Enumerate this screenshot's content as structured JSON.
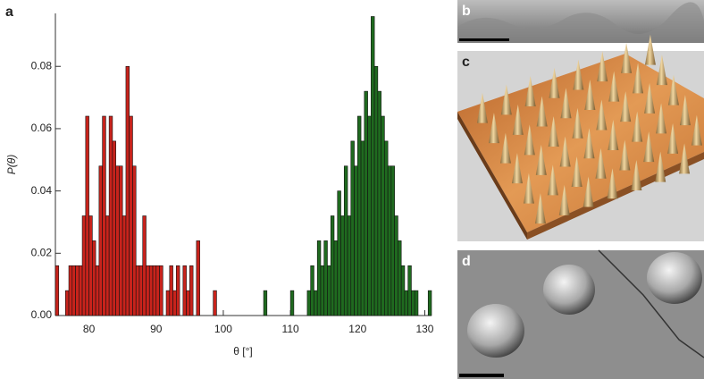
{
  "chart_data": {
    "type": "histogram",
    "panel_label": "a",
    "y_label": "P(θ)",
    "x_label": "θ [°]",
    "xlim": [
      75,
      131
    ],
    "xticks": [
      80,
      90,
      100,
      110,
      120,
      130
    ],
    "ylim": [
      0,
      0.097
    ],
    "yticks": [
      {
        "value": 0,
        "label": "0.00"
      },
      0.02,
      0.04,
      0.06,
      0.08
    ],
    "series": [
      {
        "color": "#c8231c",
        "bins": [
          75,
          75.5,
          76,
          76.5,
          77,
          77.5,
          78,
          78.5,
          79,
          79.5,
          80,
          80.5,
          81,
          81.5,
          82,
          82.5,
          83,
          83.5,
          84,
          84.5,
          85,
          85.5,
          86,
          86.5,
          87,
          87.5,
          88,
          88.5,
          89,
          89.5,
          90,
          90.5,
          91,
          91.5,
          92,
          92.5,
          93,
          93.5,
          94,
          94.5,
          95,
          95.5,
          96,
          96.5,
          97,
          97.5,
          98,
          98.5,
          99
        ],
        "values": [
          0.016,
          0,
          0,
          0.008,
          0.016,
          0.016,
          0.016,
          0.016,
          0.032,
          0.064,
          0.032,
          0.024,
          0.016,
          0.048,
          0.064,
          0.032,
          0.064,
          0.056,
          0.048,
          0.048,
          0.032,
          0.08,
          0.064,
          0.048,
          0.016,
          0.016,
          0.032,
          0.016,
          0.016,
          0.016,
          0.016,
          0.016,
          0,
          0.008,
          0.016,
          0.008,
          0.016,
          0,
          0.016,
          0.008,
          0.016,
          0,
          0.024,
          0,
          0,
          0,
          0,
          0.008
        ]
      },
      {
        "color": "#1f6a1f",
        "bins": [
          106,
          106.5,
          107,
          107.5,
          108,
          108.5,
          109,
          109.5,
          110,
          110.5,
          111,
          111.5,
          112,
          112.5,
          113,
          113.5,
          114,
          114.5,
          115,
          115.5,
          116,
          116.5,
          117,
          117.5,
          118,
          118.5,
          119,
          119.5,
          120,
          120.5,
          121,
          121.5,
          122,
          122.5,
          123,
          123.5,
          124,
          124.5,
          125,
          125.5,
          126,
          126.5,
          127,
          127.5,
          128,
          128.5,
          129,
          129.5,
          130,
          130.5,
          131
        ],
        "values": [
          0.008,
          0,
          0,
          0,
          0,
          0,
          0,
          0,
          0.008,
          0,
          0,
          0,
          0,
          0.008,
          0.016,
          0.008,
          0.024,
          0.016,
          0.024,
          0.016,
          0.032,
          0.024,
          0.04,
          0.032,
          0.048,
          0.032,
          0.056,
          0.048,
          0.064,
          0.056,
          0.072,
          0.064,
          0.096,
          0.08,
          0.072,
          0.064,
          0.056,
          0.048,
          0.048,
          0.032,
          0.024,
          0.016,
          0.008,
          0.016,
          0.008,
          0.008,
          0,
          0,
          0,
          0.008
        ]
      }
    ]
  },
  "panels": [
    "b",
    "c",
    "d"
  ]
}
